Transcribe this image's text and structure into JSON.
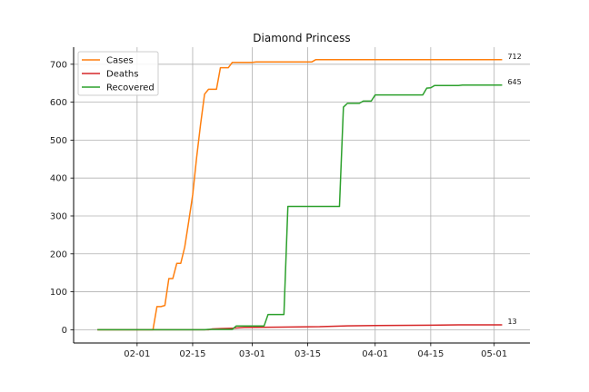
{
  "chart_data": {
    "type": "line",
    "title": "Diamond Princess",
    "xlabel": "",
    "ylabel": "",
    "x_range": [
      "2020-01-16",
      "2020-05-10"
    ],
    "ylim": [
      -35,
      745
    ],
    "y_ticks": [
      0,
      100,
      200,
      300,
      400,
      500,
      600,
      700
    ],
    "x_ticks": [
      {
        "date": "2020-02-01",
        "label": "02-01"
      },
      {
        "date": "2020-02-15",
        "label": "02-15"
      },
      {
        "date": "2020-03-01",
        "label": "03-01"
      },
      {
        "date": "2020-03-15",
        "label": "03-15"
      },
      {
        "date": "2020-04-01",
        "label": "04-01"
      },
      {
        "date": "2020-04-15",
        "label": "04-15"
      },
      {
        "date": "2020-05-01",
        "label": "05-01"
      }
    ],
    "grid": true,
    "legend_position": "upper-left",
    "series": [
      {
        "name": "Cases",
        "color": "#ff7f0e",
        "end_label": "712",
        "points": [
          [
            "2020-01-22",
            0
          ],
          [
            "2020-02-05",
            0
          ],
          [
            "2020-02-06",
            61
          ],
          [
            "2020-02-07",
            61
          ],
          [
            "2020-02-08",
            64
          ],
          [
            "2020-02-09",
            135
          ],
          [
            "2020-02-10",
            135
          ],
          [
            "2020-02-11",
            175
          ],
          [
            "2020-02-12",
            175
          ],
          [
            "2020-02-13",
            218
          ],
          [
            "2020-02-14",
            285
          ],
          [
            "2020-02-15",
            355
          ],
          [
            "2020-02-16",
            454
          ],
          [
            "2020-02-17",
            542
          ],
          [
            "2020-02-18",
            621
          ],
          [
            "2020-02-19",
            634
          ],
          [
            "2020-02-21",
            634
          ],
          [
            "2020-02-22",
            691
          ],
          [
            "2020-02-24",
            691
          ],
          [
            "2020-02-25",
            705
          ],
          [
            "2020-03-01",
            705
          ],
          [
            "2020-03-02",
            706
          ],
          [
            "2020-03-16",
            706
          ],
          [
            "2020-03-17",
            712
          ],
          [
            "2020-05-03",
            712
          ]
        ]
      },
      {
        "name": "Deaths",
        "color": "#d62728",
        "end_label": "13",
        "points": [
          [
            "2020-01-22",
            0
          ],
          [
            "2020-02-19",
            0
          ],
          [
            "2020-02-20",
            2
          ],
          [
            "2020-02-22",
            3
          ],
          [
            "2020-02-25",
            4
          ],
          [
            "2020-02-28",
            6
          ],
          [
            "2020-03-08",
            7
          ],
          [
            "2020-03-18",
            8
          ],
          [
            "2020-03-24",
            10
          ],
          [
            "2020-04-01",
            11
          ],
          [
            "2020-04-15",
            12
          ],
          [
            "2020-04-22",
            13
          ],
          [
            "2020-05-03",
            13
          ]
        ]
      },
      {
        "name": "Recovered",
        "color": "#2ca02c",
        "end_label": "645",
        "points": [
          [
            "2020-01-22",
            0
          ],
          [
            "2020-02-18",
            0
          ],
          [
            "2020-02-19",
            1
          ],
          [
            "2020-02-25",
            1
          ],
          [
            "2020-02-26",
            10
          ],
          [
            "2020-03-04",
            10
          ],
          [
            "2020-03-05",
            40
          ],
          [
            "2020-03-09",
            40
          ],
          [
            "2020-03-10",
            325
          ],
          [
            "2020-03-23",
            325
          ],
          [
            "2020-03-24",
            587
          ],
          [
            "2020-03-25",
            597
          ],
          [
            "2020-03-28",
            597
          ],
          [
            "2020-03-29",
            603
          ],
          [
            "2020-03-31",
            603
          ],
          [
            "2020-04-01",
            619
          ],
          [
            "2020-04-13",
            619
          ],
          [
            "2020-04-14",
            637
          ],
          [
            "2020-04-15",
            638
          ],
          [
            "2020-04-16",
            644
          ],
          [
            "2020-04-22",
            644
          ],
          [
            "2020-04-23",
            645
          ],
          [
            "2020-05-03",
            645
          ]
        ]
      }
    ]
  }
}
